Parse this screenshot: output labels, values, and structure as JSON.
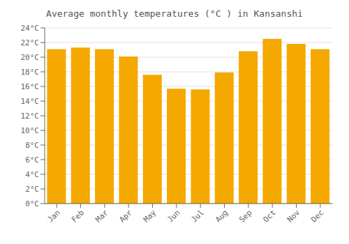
{
  "chart_data": {
    "type": "bar",
    "title": "Average monthly temperatures (°C ) in Kansanshi",
    "categories": [
      "Jan",
      "Feb",
      "Mar",
      "Apr",
      "May",
      "Jun",
      "Jul",
      "Aug",
      "Sep",
      "Oct",
      "Nov",
      "Dec"
    ],
    "values": [
      21.1,
      21.3,
      21.1,
      20.1,
      17.6,
      15.7,
      15.6,
      17.9,
      20.8,
      22.5,
      21.8,
      21.1
    ],
    "color": "#F5A800",
    "ylim": [
      0,
      24
    ],
    "yticks": [
      {
        "value": 0,
        "label": "0°C"
      },
      {
        "value": 2,
        "label": "2°C"
      },
      {
        "value": 4,
        "label": "4°C"
      },
      {
        "value": 6,
        "label": "6°C"
      },
      {
        "value": 8,
        "label": "8°C"
      },
      {
        "value": 10,
        "label": "10°C"
      },
      {
        "value": 12,
        "label": "12°C"
      },
      {
        "value": 14,
        "label": "14°C"
      },
      {
        "value": 16,
        "label": "16°C"
      },
      {
        "value": 18,
        "label": "18°C"
      },
      {
        "value": 20,
        "label": "20°C"
      },
      {
        "value": 22,
        "label": "22°C"
      },
      {
        "value": 24,
        "label": "24°C"
      }
    ],
    "grid": true
  }
}
